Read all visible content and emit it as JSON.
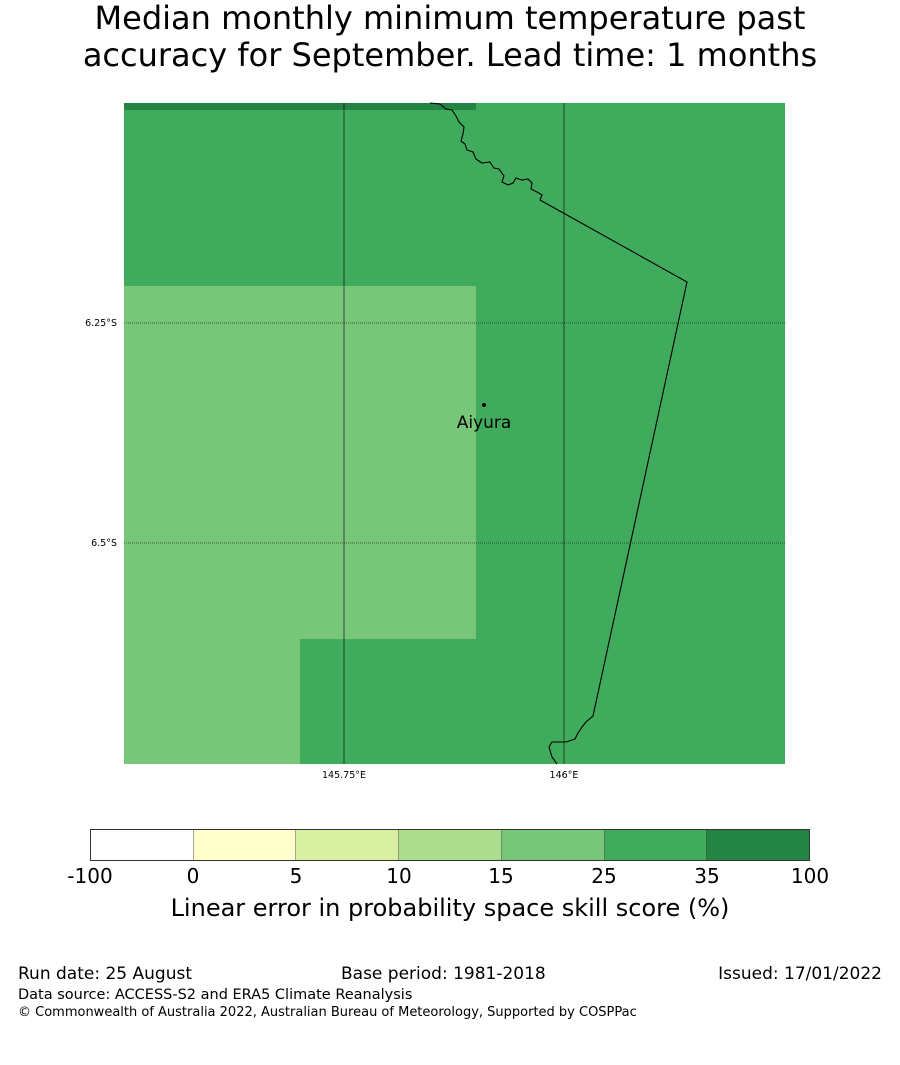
{
  "title": {
    "line1": "Median monthly minimum temperature past",
    "line2": "accuracy for September. Lead time: 1 months"
  },
  "map": {
    "place_label": "Aiyura",
    "lat_labels": [
      "6.25°S",
      "6.5°S"
    ],
    "lon_labels": [
      "145.75°E",
      "146°E"
    ],
    "grid_cells": [
      {
        "category": "35 to 100",
        "color": "#238443"
      },
      {
        "category": "25 to 35",
        "color": "#41ab5d"
      },
      {
        "category": "15 to 25",
        "color": "#78c679"
      }
    ]
  },
  "colorbar": {
    "ticks": [
      "-100",
      "0",
      "5",
      "10",
      "15",
      "25",
      "35",
      "100"
    ],
    "colors": [
      "#ffffff",
      "#ffffcc",
      "#d9f0a3",
      "#addd8e",
      "#78c679",
      "#41ab5d",
      "#238443"
    ],
    "label": "Linear error in probability space skill score (%)"
  },
  "footer": {
    "run_date": "Run date: 25 August",
    "base_period": "Base period: 1981-2018",
    "issued": "Issued: 17/01/2022",
    "data_source": "Data source: ACCESS-S2 and ERA5 Climate Reanalysis",
    "copyright": "© Commonwealth of Australia 2022, Australian Bureau of Meteorology, Supported by COSPPac"
  }
}
